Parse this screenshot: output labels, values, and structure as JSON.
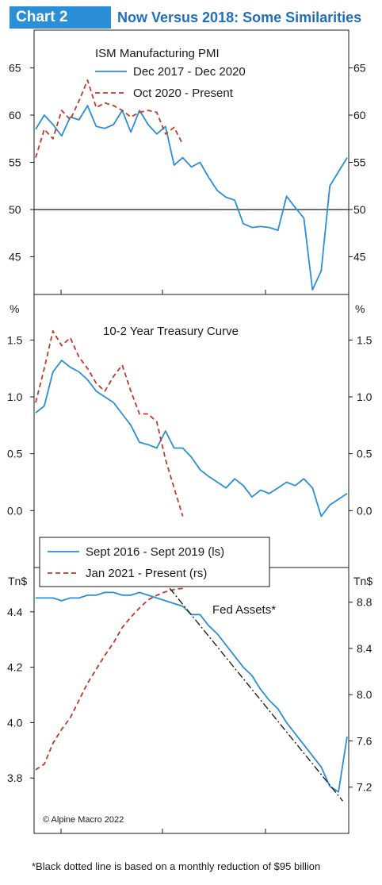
{
  "header": {
    "badge": "Chart 2",
    "title": "Now Versus 2018: Some Similarities"
  },
  "footnote": "*Black dotted line is based on a monthly reduction of $95 billion",
  "credit": "© Alpine Macro 2022",
  "colors": {
    "blue": "#2a8fd6",
    "red": "#c0392b",
    "black": "#222222",
    "accent": "#1f6fbf"
  },
  "chart_data": [
    {
      "type": "line",
      "title": "ISM Manufacturing PMI",
      "ylim": [
        41,
        69
      ],
      "yticks": [
        45,
        50,
        55,
        60,
        65
      ],
      "reference_line": 50,
      "series": [
        {
          "name": "Dec 2017 - Dec 2020",
          "style": "solid",
          "color": "#2a8fd6",
          "x": [
            0,
            1,
            2,
            3,
            4,
            5,
            6,
            7,
            8,
            9,
            10,
            11,
            12,
            13,
            14,
            15,
            16,
            17,
            18,
            19,
            20,
            21,
            22,
            23,
            24,
            25,
            26,
            27,
            28,
            29,
            30,
            31,
            32,
            33,
            34,
            35,
            36
          ],
          "values": [
            58.5,
            60.0,
            59.0,
            57.8,
            59.8,
            59.5,
            61.0,
            58.8,
            58.6,
            59.0,
            60.5,
            58.2,
            60.5,
            59.0,
            58.0,
            58.8,
            54.7,
            55.5,
            54.5,
            55.0,
            53.4,
            52.0,
            51.3,
            51.0,
            48.5,
            48.1,
            48.2,
            48.1,
            47.8,
            51.4,
            50.2,
            49.1,
            41.5,
            43.5,
            52.5,
            54.0,
            55.5
          ]
        },
        {
          "name": "Oct 2020 - Present",
          "style": "dashed",
          "color": "#c0392b",
          "x": [
            0,
            1,
            2,
            3,
            4,
            5,
            6,
            7,
            8,
            9,
            10,
            11,
            12,
            13,
            14,
            15,
            16,
            17
          ],
          "values": [
            55.5,
            58.5,
            57.5,
            60.5,
            59.5,
            61.5,
            63.7,
            60.8,
            61.3,
            61.0,
            60.5,
            59.8,
            60.3,
            60.5,
            60.3,
            58.0,
            58.7,
            56.9
          ]
        }
      ]
    },
    {
      "type": "line",
      "title": "10-2 Year Treasury Curve",
      "ylabel": "%",
      "ylim": [
        -0.5,
        1.9
      ],
      "yticks": [
        0.0,
        0.5,
        1.0,
        1.5
      ],
      "series": [
        {
          "name": "Sept 2016 - Sept 2019 (ls)",
          "style": "solid",
          "color": "#2a8fd6",
          "x": [
            0,
            1,
            2,
            3,
            4,
            5,
            6,
            7,
            8,
            9,
            10,
            11,
            12,
            13,
            14,
            15,
            16,
            17,
            18,
            19,
            20,
            21,
            22,
            23,
            24,
            25,
            26,
            27,
            28,
            29,
            30,
            31,
            32,
            33,
            34,
            35,
            36
          ],
          "values": [
            0.86,
            0.92,
            1.22,
            1.32,
            1.26,
            1.22,
            1.15,
            1.05,
            1.0,
            0.95,
            0.85,
            0.75,
            0.6,
            0.58,
            0.55,
            0.7,
            0.55,
            0.55,
            0.47,
            0.36,
            0.3,
            0.25,
            0.2,
            0.28,
            0.22,
            0.12,
            0.18,
            0.15,
            0.2,
            0.25,
            0.22,
            0.28,
            0.2,
            -0.05,
            0.05,
            0.1,
            0.15
          ]
        },
        {
          "name": "Jan 2021 - Present (rs)",
          "style": "dashed",
          "color": "#c0392b",
          "x": [
            0,
            1,
            2,
            3,
            4,
            5,
            6,
            7,
            8,
            9,
            10,
            11,
            12,
            13,
            14,
            15,
            16,
            17
          ],
          "values": [
            0.95,
            1.25,
            1.58,
            1.45,
            1.52,
            1.35,
            1.25,
            1.12,
            1.05,
            1.18,
            1.28,
            1.05,
            0.85,
            0.85,
            0.78,
            0.45,
            0.2,
            -0.05
          ]
        }
      ]
    },
    {
      "type": "line",
      "title": "Fed Assets*",
      "ylabel_left": "Tn$",
      "ylabel_right": "Tn$",
      "ylim_left": [
        3.6,
        4.56
      ],
      "yticks_left": [
        3.8,
        4.0,
        4.2,
        4.4
      ],
      "ylim_right": [
        6.8,
        9.1
      ],
      "yticks_right": [
        7.2,
        7.6,
        8.0,
        8.4,
        8.8
      ],
      "series": [
        {
          "name": "Sept 2016 - Sept 2019 (ls)",
          "style": "solid",
          "color": "#2a8fd6",
          "axis": "left",
          "x": [
            0,
            1,
            2,
            3,
            4,
            5,
            6,
            7,
            8,
            9,
            10,
            11,
            12,
            13,
            14,
            15,
            16,
            17,
            18,
            19,
            20,
            21,
            22,
            23,
            24,
            25,
            26,
            27,
            28,
            29,
            30,
            31,
            32,
            33,
            34,
            35,
            36
          ],
          "values": [
            4.45,
            4.45,
            4.45,
            4.44,
            4.45,
            4.45,
            4.46,
            4.46,
            4.47,
            4.47,
            4.46,
            4.46,
            4.47,
            4.46,
            4.45,
            4.44,
            4.43,
            4.42,
            4.39,
            4.39,
            4.35,
            4.32,
            4.28,
            4.24,
            4.2,
            4.17,
            4.12,
            4.08,
            4.05,
            4.0,
            3.96,
            3.92,
            3.88,
            3.84,
            3.77,
            3.75,
            3.95
          ]
        },
        {
          "name": "Jan 2021 - Present (rs)",
          "style": "dashed",
          "color": "#c0392b",
          "axis": "right",
          "x": [
            0,
            1,
            2,
            3,
            4,
            5,
            6,
            7,
            8,
            9,
            10,
            11,
            12,
            13,
            14,
            15,
            16,
            17
          ],
          "values": [
            7.35,
            7.4,
            7.58,
            7.7,
            7.8,
            7.95,
            8.1,
            8.22,
            8.34,
            8.45,
            8.58,
            8.67,
            8.75,
            8.82,
            8.86,
            8.89,
            8.91,
            8.92
          ]
        },
        {
          "name": "",
          "style": "dash-dot",
          "color": "#222222",
          "axis": "right",
          "x": [
            15.5,
            35.5
          ],
          "values": [
            8.92,
            7.08
          ]
        }
      ]
    }
  ]
}
